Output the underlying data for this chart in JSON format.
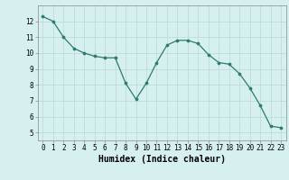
{
  "x": [
    0,
    1,
    2,
    3,
    4,
    5,
    6,
    7,
    8,
    9,
    10,
    11,
    12,
    13,
    14,
    15,
    16,
    17,
    18,
    19,
    20,
    21,
    22,
    23
  ],
  "y": [
    12.3,
    12.0,
    11.0,
    10.3,
    10.0,
    9.8,
    9.7,
    9.7,
    8.1,
    7.1,
    8.1,
    9.4,
    10.5,
    10.8,
    10.8,
    10.6,
    9.9,
    9.4,
    9.3,
    8.7,
    7.8,
    6.7,
    5.4,
    5.3
  ],
  "line_color": "#2d7a6e",
  "marker_color": "#2d7a6e",
  "bg_color": "#d6f0ef",
  "grid_color": "#b8d8d5",
  "xlabel": "Humidex (Indice chaleur)",
  "xlim": [
    -0.5,
    23.5
  ],
  "ylim": [
    4.5,
    13.0
  ],
  "yticks": [
    5,
    6,
    7,
    8,
    9,
    10,
    11,
    12
  ],
  "xticks": [
    0,
    1,
    2,
    3,
    4,
    5,
    6,
    7,
    8,
    9,
    10,
    11,
    12,
    13,
    14,
    15,
    16,
    17,
    18,
    19,
    20,
    21,
    22,
    23
  ],
  "tick_fontsize": 5.5,
  "label_fontsize": 7.0
}
